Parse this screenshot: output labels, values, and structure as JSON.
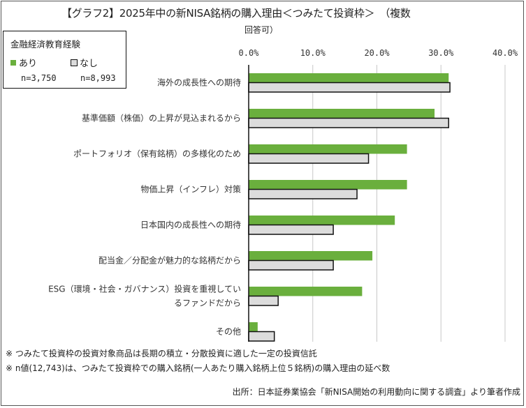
{
  "title": "【グラフ2】2025年中の新NISA銘柄の購入理由＜つみたて投資枠＞　（複数",
  "title_cont": "回答可）",
  "legend": {
    "title": "金融経済教育経験",
    "items": [
      {
        "label": "あり",
        "n": "n=3,750",
        "color": "#6aaf3d"
      },
      {
        "label": "なし",
        "n": "n=8,993",
        "color": "#dcdcdc"
      }
    ]
  },
  "notes": [
    "※ つみたて投資枠の投資対象商品は長期の積立・分散投資に適した一定の投資信託",
    "※ n値(12,743)は、つみたて投資枠での購入銘柄(一人あたり購入銘柄上位５銘柄)の購入理由の延べ数"
  ],
  "source": "出所：日本証券業協会「新NISA開始の利用動向に関する調査」より筆者作成",
  "chart_data": {
    "type": "bar",
    "orientation": "horizontal",
    "categories": [
      [
        "海外の成長性への期待"
      ],
      [
        "基準価額（株価）の上昇が見込まれるから"
      ],
      [
        "ポートフォリオ（保有銘柄）の多様化のため"
      ],
      [
        "物価上昇（インフレ）対策"
      ],
      [
        "日本国内の成長性への期待"
      ],
      [
        "配当金／分配金が魅力的な銘柄だから"
      ],
      [
        "ESG（環境・社会・ガバナンス）投資を重視してい",
        "るファンドだから"
      ],
      [
        "その他"
      ]
    ],
    "series": [
      {
        "name": "あり",
        "values": [
          31.2,
          29.0,
          24.7,
          24.7,
          22.8,
          19.3,
          17.7,
          1.4
        ],
        "color": "#6aaf3d"
      },
      {
        "name": "なし",
        "values": [
          31.4,
          31.2,
          18.7,
          16.9,
          13.2,
          13.2,
          4.6,
          4.0
        ],
        "color": "#dcdcdc"
      }
    ],
    "xlim": [
      0,
      40
    ],
    "ticks": [
      "0.0%",
      "10.0%",
      "20.0%",
      "30.0%",
      "40.0%"
    ],
    "tick_values": [
      0,
      10,
      20,
      30,
      40
    ],
    "grid": true,
    "legend_position": "top-left"
  }
}
